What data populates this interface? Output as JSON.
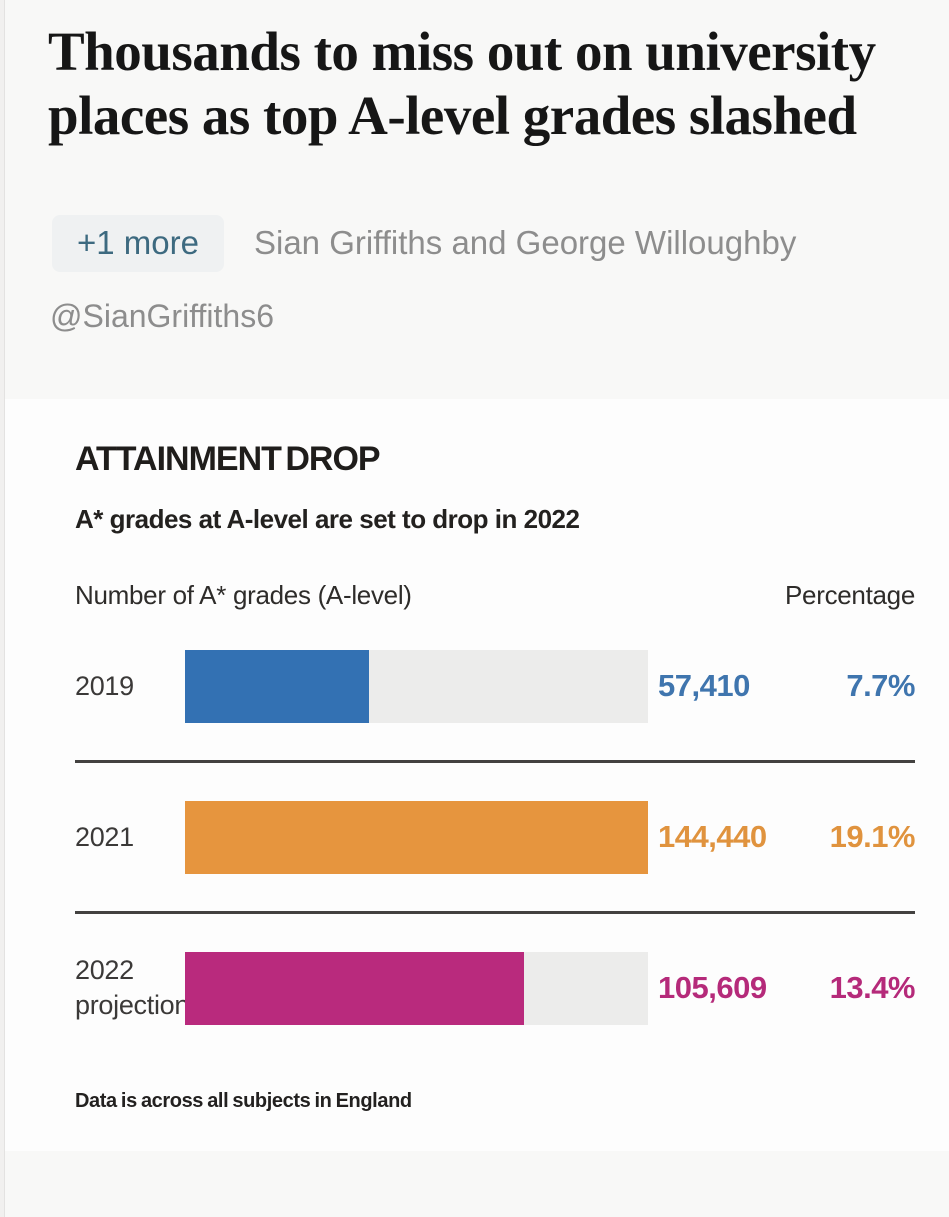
{
  "article": {
    "headline": "Thousands to miss out on university places as top A-level grades slashed",
    "byline": {
      "more_badge": "+1 more",
      "authors": "Sian Griffiths and George Willoughby",
      "handle": "@SianGriffiths6"
    }
  },
  "chart_data": {
    "type": "bar",
    "orientation": "horizontal",
    "title": "ATTAINMENT DROP",
    "subtitle": "A* grades at A-level are set to drop in 2022",
    "left_header": "Number of A* grades (A-level)",
    "right_header": "Percentage",
    "footnote": "Data is across all subjects in England",
    "categories": [
      "2019",
      "2021",
      "2022 projection"
    ],
    "values": [
      57410,
      144440,
      105609
    ],
    "percentages": [
      7.7,
      19.1,
      13.4
    ],
    "max_value": 144440,
    "xlim": [
      0,
      144440
    ],
    "grid": false,
    "legend": false,
    "track_color": "#ececeb",
    "rows": [
      {
        "label_line1": "2019",
        "label_line2": "",
        "value": 57410,
        "value_label": "57,410",
        "pct_label": "7.7%",
        "bar_color": "#3371b3",
        "text_color": "#3f75ae"
      },
      {
        "label_line1": "2021",
        "label_line2": "",
        "value": 144440,
        "value_label": "144,440",
        "pct_label": "19.1%",
        "bar_color": "#e6953e",
        "text_color": "#e0933e"
      },
      {
        "label_line1": "2022",
        "label_line2": "projection",
        "value": 105609,
        "value_label": "105,609",
        "pct_label": "13.4%",
        "bar_color": "#b92a7d",
        "text_color": "#b52a7a"
      }
    ]
  }
}
